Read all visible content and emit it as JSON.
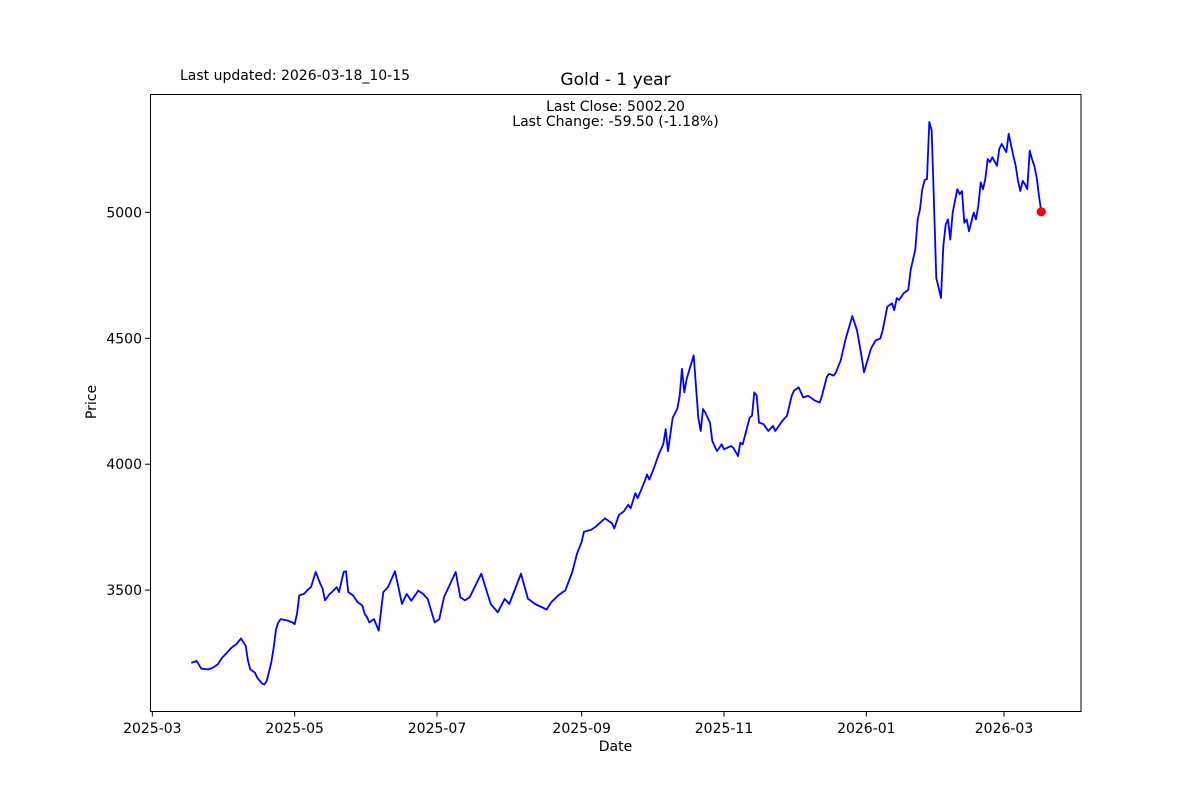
{
  "figure": {
    "last_updated": "Last updated: 2026-03-18_10-15"
  },
  "chart_data": {
    "type": "line",
    "title": "Gold - 1 year",
    "subtitle_lines": [
      "Last Close: 5002.20",
      "Last Change: -59.50 (-1.18%)"
    ],
    "last_close": 5002.2,
    "last_change_text": "-59.50 (-1.18%)",
    "xlabel": "Date",
    "ylabel": "Price",
    "grid": false,
    "line_color": "#0000ff",
    "marker_color": "#ff0000",
    "axis_color": "#000000",
    "x_domain": [
      "2025-02-28",
      "2026-04-03"
    ],
    "y_domain": [
      3020,
      5470
    ],
    "x_ticks": [
      {
        "label": "2025-03",
        "date": "2025-03-01"
      },
      {
        "label": "2025-05",
        "date": "2025-05-01"
      },
      {
        "label": "2025-07",
        "date": "2025-07-01"
      },
      {
        "label": "2025-09",
        "date": "2025-09-01"
      },
      {
        "label": "2025-11",
        "date": "2025-11-01"
      },
      {
        "label": "2026-01",
        "date": "2026-01-01"
      },
      {
        "label": "2026-03",
        "date": "2026-03-01"
      }
    ],
    "y_ticks": [
      3500,
      4000,
      4500,
      5000
    ],
    "series": [
      {
        "name": "Gold",
        "points": [
          [
            "2025-03-18",
            3212
          ],
          [
            "2025-03-20",
            3219
          ],
          [
            "2025-03-22",
            3188
          ],
          [
            "2025-03-25",
            3185
          ],
          [
            "2025-03-27",
            3192
          ],
          [
            "2025-03-29",
            3205
          ],
          [
            "2025-03-31",
            3232
          ],
          [
            "2025-04-02",
            3252
          ],
          [
            "2025-04-04",
            3272
          ],
          [
            "2025-04-06",
            3285
          ],
          [
            "2025-04-08",
            3308
          ],
          [
            "2025-04-10",
            3279
          ],
          [
            "2025-04-11",
            3219
          ],
          [
            "2025-04-12",
            3185
          ],
          [
            "2025-04-14",
            3172
          ],
          [
            "2025-04-15",
            3152
          ],
          [
            "2025-04-17",
            3129
          ],
          [
            "2025-04-18",
            3125
          ],
          [
            "2025-04-19",
            3139
          ],
          [
            "2025-04-21",
            3212
          ],
          [
            "2025-04-22",
            3272
          ],
          [
            "2025-04-23",
            3345
          ],
          [
            "2025-04-24",
            3372
          ],
          [
            "2025-04-25",
            3385
          ],
          [
            "2025-04-28",
            3379
          ],
          [
            "2025-04-30",
            3372
          ],
          [
            "2025-05-01",
            3365
          ],
          [
            "2025-05-02",
            3405
          ],
          [
            "2025-05-03",
            3479
          ],
          [
            "2025-05-05",
            3485
          ],
          [
            "2025-05-07",
            3505
          ],
          [
            "2025-05-08",
            3512
          ],
          [
            "2025-05-10",
            3572
          ],
          [
            "2025-05-12",
            3525
          ],
          [
            "2025-05-13",
            3505
          ],
          [
            "2025-05-14",
            3459
          ],
          [
            "2025-05-16",
            3485
          ],
          [
            "2025-05-17",
            3492
          ],
          [
            "2025-05-19",
            3512
          ],
          [
            "2025-05-20",
            3492
          ],
          [
            "2025-05-22",
            3572
          ],
          [
            "2025-05-23",
            3575
          ],
          [
            "2025-05-24",
            3492
          ],
          [
            "2025-05-26",
            3479
          ],
          [
            "2025-05-27",
            3465
          ],
          [
            "2025-05-28",
            3452
          ],
          [
            "2025-05-30",
            3439
          ],
          [
            "2025-05-31",
            3405
          ],
          [
            "2025-06-01",
            3392
          ],
          [
            "2025-06-02",
            3372
          ],
          [
            "2025-06-04",
            3385
          ],
          [
            "2025-06-06",
            3339
          ],
          [
            "2025-06-08",
            3492
          ],
          [
            "2025-06-10",
            3512
          ],
          [
            "2025-06-13",
            3575
          ],
          [
            "2025-06-16",
            3445
          ],
          [
            "2025-06-18",
            3485
          ],
          [
            "2025-06-20",
            3458
          ],
          [
            "2025-06-23",
            3498
          ],
          [
            "2025-06-25",
            3485
          ],
          [
            "2025-06-27",
            3465
          ],
          [
            "2025-06-30",
            3372
          ],
          [
            "2025-07-02",
            3385
          ],
          [
            "2025-07-04",
            3472
          ],
          [
            "2025-07-09",
            3572
          ],
          [
            "2025-07-11",
            3472
          ],
          [
            "2025-07-13",
            3459
          ],
          [
            "2025-07-15",
            3472
          ],
          [
            "2025-07-20",
            3565
          ],
          [
            "2025-07-22",
            3505
          ],
          [
            "2025-07-24",
            3445
          ],
          [
            "2025-07-27",
            3412
          ],
          [
            "2025-07-30",
            3465
          ],
          [
            "2025-08-01",
            3445
          ],
          [
            "2025-08-06",
            3565
          ],
          [
            "2025-08-09",
            3465
          ],
          [
            "2025-08-10",
            3459
          ],
          [
            "2025-08-12",
            3445
          ],
          [
            "2025-08-17",
            3423
          ],
          [
            "2025-08-19",
            3452
          ],
          [
            "2025-08-22",
            3479
          ],
          [
            "2025-08-25",
            3499
          ],
          [
            "2025-08-28",
            3572
          ],
          [
            "2025-08-30",
            3645
          ],
          [
            "2025-09-01",
            3692
          ],
          [
            "2025-09-02",
            3732
          ],
          [
            "2025-09-05",
            3739
          ],
          [
            "2025-09-07",
            3752
          ],
          [
            "2025-09-11",
            3785
          ],
          [
            "2025-09-14",
            3765
          ],
          [
            "2025-09-15",
            3745
          ],
          [
            "2025-09-17",
            3799
          ],
          [
            "2025-09-19",
            3812
          ],
          [
            "2025-09-21",
            3839
          ],
          [
            "2025-09-22",
            3825
          ],
          [
            "2025-09-24",
            3885
          ],
          [
            "2025-09-25",
            3865
          ],
          [
            "2025-09-28",
            3932
          ],
          [
            "2025-09-29",
            3959
          ],
          [
            "2025-09-30",
            3939
          ],
          [
            "2025-10-02",
            3985
          ],
          [
            "2025-10-04",
            4039
          ],
          [
            "2025-10-06",
            4079
          ],
          [
            "2025-10-07",
            4139
          ],
          [
            "2025-10-08",
            4052
          ],
          [
            "2025-10-10",
            4185
          ],
          [
            "2025-10-12",
            4219
          ],
          [
            "2025-10-13",
            4272
          ],
          [
            "2025-10-14",
            4379
          ],
          [
            "2025-10-15",
            4285
          ],
          [
            "2025-10-16",
            4339
          ],
          [
            "2025-10-19",
            4432
          ],
          [
            "2025-10-21",
            4185
          ],
          [
            "2025-10-22",
            4132
          ],
          [
            "2025-10-23",
            4219
          ],
          [
            "2025-10-24",
            4205
          ],
          [
            "2025-10-26",
            4165
          ],
          [
            "2025-10-27",
            4092
          ],
          [
            "2025-10-29",
            4052
          ],
          [
            "2025-10-31",
            4079
          ],
          [
            "2025-11-01",
            4059
          ],
          [
            "2025-11-04",
            4072
          ],
          [
            "2025-11-05",
            4065
          ],
          [
            "2025-11-07",
            4032
          ],
          [
            "2025-11-08",
            4085
          ],
          [
            "2025-11-09",
            4079
          ],
          [
            "2025-11-12",
            4185
          ],
          [
            "2025-11-13",
            4192
          ],
          [
            "2025-11-14",
            4285
          ],
          [
            "2025-11-15",
            4272
          ],
          [
            "2025-11-16",
            4165
          ],
          [
            "2025-11-18",
            4159
          ],
          [
            "2025-11-19",
            4145
          ],
          [
            "2025-11-20",
            4132
          ],
          [
            "2025-11-22",
            4152
          ],
          [
            "2025-11-23",
            4132
          ],
          [
            "2025-11-26",
            4172
          ],
          [
            "2025-11-28",
            4192
          ],
          [
            "2025-11-30",
            4272
          ],
          [
            "2025-12-01",
            4292
          ],
          [
            "2025-12-03",
            4305
          ],
          [
            "2025-12-05",
            4265
          ],
          [
            "2025-12-07",
            4272
          ],
          [
            "2025-12-09",
            4259
          ],
          [
            "2025-12-10",
            4252
          ],
          [
            "2025-12-12",
            4245
          ],
          [
            "2025-12-13",
            4272
          ],
          [
            "2025-12-15",
            4345
          ],
          [
            "2025-12-16",
            4359
          ],
          [
            "2025-12-18",
            4352
          ],
          [
            "2025-12-19",
            4365
          ],
          [
            "2025-12-21",
            4412
          ],
          [
            "2025-12-23",
            4492
          ],
          [
            "2025-12-26",
            4588
          ],
          [
            "2025-12-28",
            4532
          ],
          [
            "2025-12-30",
            4425
          ],
          [
            "2025-12-31",
            4365
          ],
          [
            "2026-01-03",
            4459
          ],
          [
            "2026-01-05",
            4492
          ],
          [
            "2026-01-07",
            4499
          ],
          [
            "2026-01-08",
            4532
          ],
          [
            "2026-01-10",
            4625
          ],
          [
            "2026-01-12",
            4639
          ],
          [
            "2026-01-13",
            4612
          ],
          [
            "2026-01-14",
            4659
          ],
          [
            "2026-01-15",
            4652
          ],
          [
            "2026-01-17",
            4679
          ],
          [
            "2026-01-19",
            4692
          ],
          [
            "2026-01-20",
            4772
          ],
          [
            "2026-01-22",
            4852
          ],
          [
            "2026-01-23",
            4972
          ],
          [
            "2026-01-24",
            5012
          ],
          [
            "2026-01-25",
            5092
          ],
          [
            "2026-01-26",
            5129
          ],
          [
            "2026-01-27",
            5132
          ],
          [
            "2026-01-28",
            5359
          ],
          [
            "2026-01-29",
            5325
          ],
          [
            "2026-01-31",
            4739
          ],
          [
            "2026-02-01",
            4700
          ],
          [
            "2026-02-02",
            4660
          ],
          [
            "2026-02-03",
            4865
          ],
          [
            "2026-02-04",
            4952
          ],
          [
            "2026-02-05",
            4972
          ],
          [
            "2026-02-06",
            4892
          ],
          [
            "2026-02-07",
            4999
          ],
          [
            "2026-02-09",
            5092
          ],
          [
            "2026-02-10",
            5072
          ],
          [
            "2026-02-11",
            5085
          ],
          [
            "2026-02-12",
            4959
          ],
          [
            "2026-02-13",
            4972
          ],
          [
            "2026-02-14",
            4925
          ],
          [
            "2026-02-16",
            4999
          ],
          [
            "2026-02-17",
            4972
          ],
          [
            "2026-02-18",
            5025
          ],
          [
            "2026-02-19",
            5119
          ],
          [
            "2026-02-20",
            5092
          ],
          [
            "2026-02-21",
            5132
          ],
          [
            "2026-02-22",
            5212
          ],
          [
            "2026-02-23",
            5199
          ],
          [
            "2026-02-24",
            5219
          ],
          [
            "2026-02-26",
            5185
          ],
          [
            "2026-02-27",
            5252
          ],
          [
            "2026-02-28",
            5272
          ],
          [
            "2026-03-02",
            5239
          ],
          [
            "2026-03-03",
            5312
          ],
          [
            "2026-03-05",
            5225
          ],
          [
            "2026-03-06",
            5185
          ],
          [
            "2026-03-07",
            5125
          ],
          [
            "2026-03-08",
            5085
          ],
          [
            "2026-03-09",
            5125
          ],
          [
            "2026-03-10",
            5112
          ],
          [
            "2026-03-11",
            5092
          ],
          [
            "2026-03-12",
            5245
          ],
          [
            "2026-03-13",
            5212
          ],
          [
            "2026-03-14",
            5185
          ],
          [
            "2026-03-15",
            5139
          ],
          [
            "2026-03-16",
            5065
          ],
          [
            "2026-03-17",
            5002.2
          ]
        ]
      }
    ]
  }
}
